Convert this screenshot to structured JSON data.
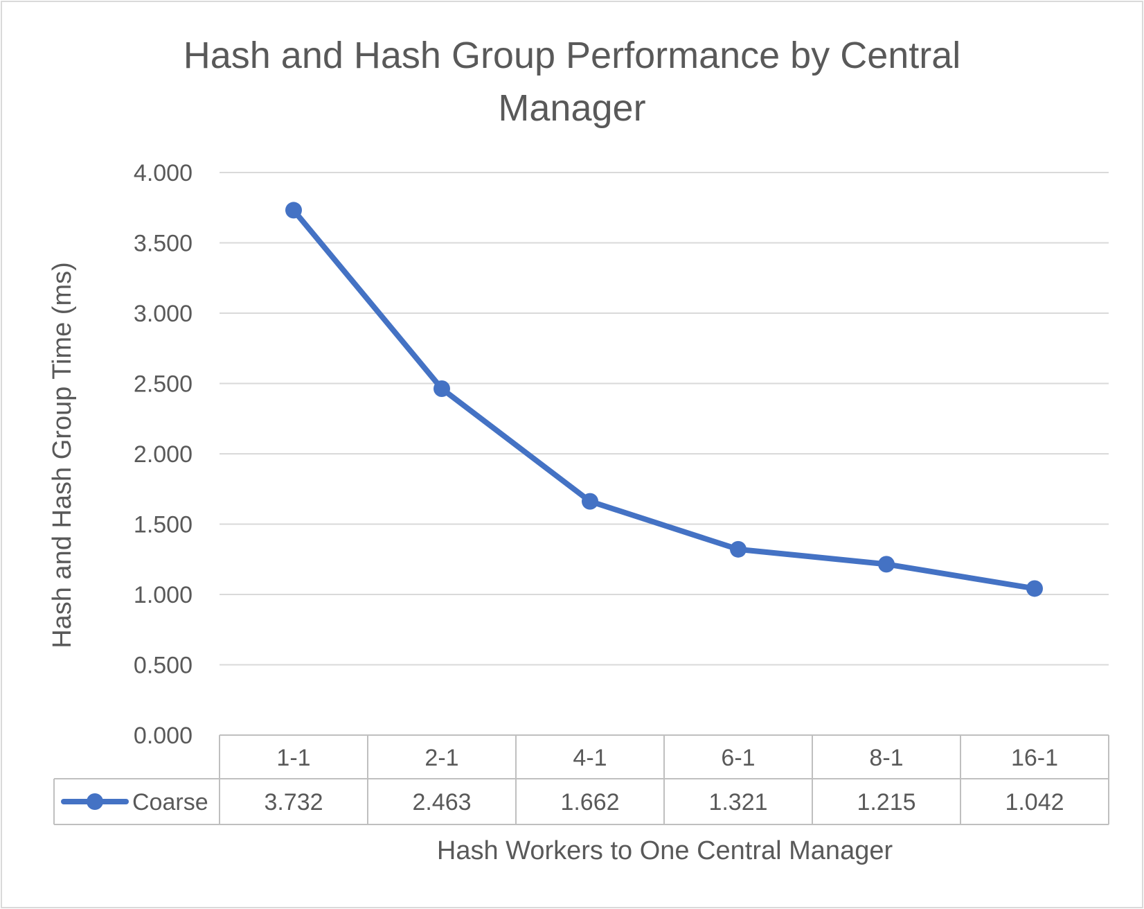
{
  "chart_data": {
    "type": "line",
    "title": "Hash and Hash Group Performance by Central Manager",
    "title_lines": [
      "Hash and Hash Group Performance by Central",
      "Manager"
    ],
    "xlabel": "Hash Workers to One Central Manager",
    "ylabel": "Hash and Hash Group Time (ms)",
    "categories": [
      "1-1",
      "2-1",
      "4-1",
      "6-1",
      "8-1",
      "16-1"
    ],
    "ylim": [
      0,
      4
    ],
    "yticks": [
      0,
      0.5,
      1,
      1.5,
      2,
      2.5,
      3,
      3.5,
      4
    ],
    "ytick_labels": [
      "0.000",
      "0.500",
      "1.000",
      "1.500",
      "2.000",
      "2.500",
      "3.000",
      "3.500",
      "4.000"
    ],
    "grid": true,
    "legend": "data-table",
    "series": [
      {
        "name": "Coarse",
        "values": [
          3.732,
          2.463,
          1.662,
          1.321,
          1.215,
          1.042
        ],
        "value_labels": [
          "3.732",
          "2.463",
          "1.662",
          "1.321",
          "1.215",
          "1.042"
        ],
        "color": "#4472c4"
      }
    ]
  }
}
